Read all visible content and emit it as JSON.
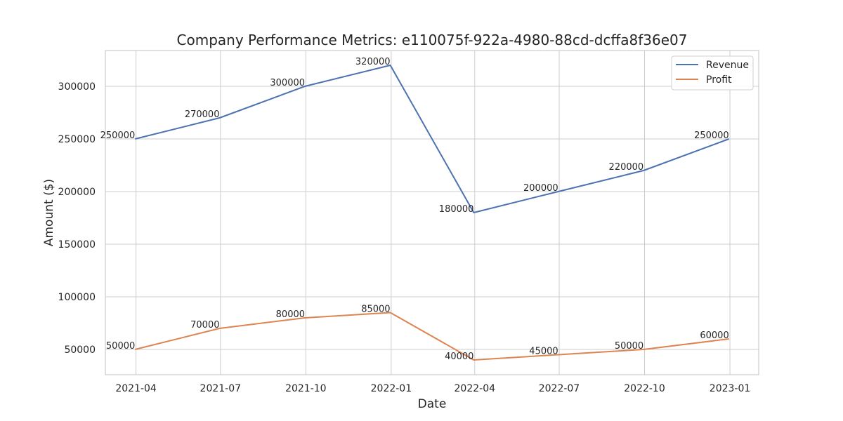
{
  "chart_data": {
    "type": "line",
    "title": "Company Performance Metrics: e110075f-922a-4980-88cd-dcffa8f36e07",
    "xlabel": "Date",
    "ylabel": "Amount ($)",
    "x": [
      "2021-03-31",
      "2021-06-30",
      "2021-09-30",
      "2021-12-31",
      "2022-03-31",
      "2022-06-30",
      "2022-09-30",
      "2022-12-31"
    ],
    "xticks": [
      "2021-04",
      "2021-07",
      "2021-10",
      "2022-01",
      "2022-04",
      "2022-07",
      "2022-10",
      "2023-01"
    ],
    "yticks": [
      50000,
      100000,
      150000,
      200000,
      250000,
      300000
    ],
    "ylim": [
      26000,
      334000
    ],
    "grid": true,
    "legend_position": "top-right",
    "series": [
      {
        "name": "Revenue",
        "color": "#4c72b0",
        "values": [
          250000,
          270000,
          300000,
          320000,
          180000,
          200000,
          220000,
          250000
        ]
      },
      {
        "name": "Profit",
        "color": "#dd8452",
        "values": [
          50000,
          70000,
          80000,
          85000,
          40000,
          45000,
          50000,
          60000
        ]
      }
    ]
  }
}
